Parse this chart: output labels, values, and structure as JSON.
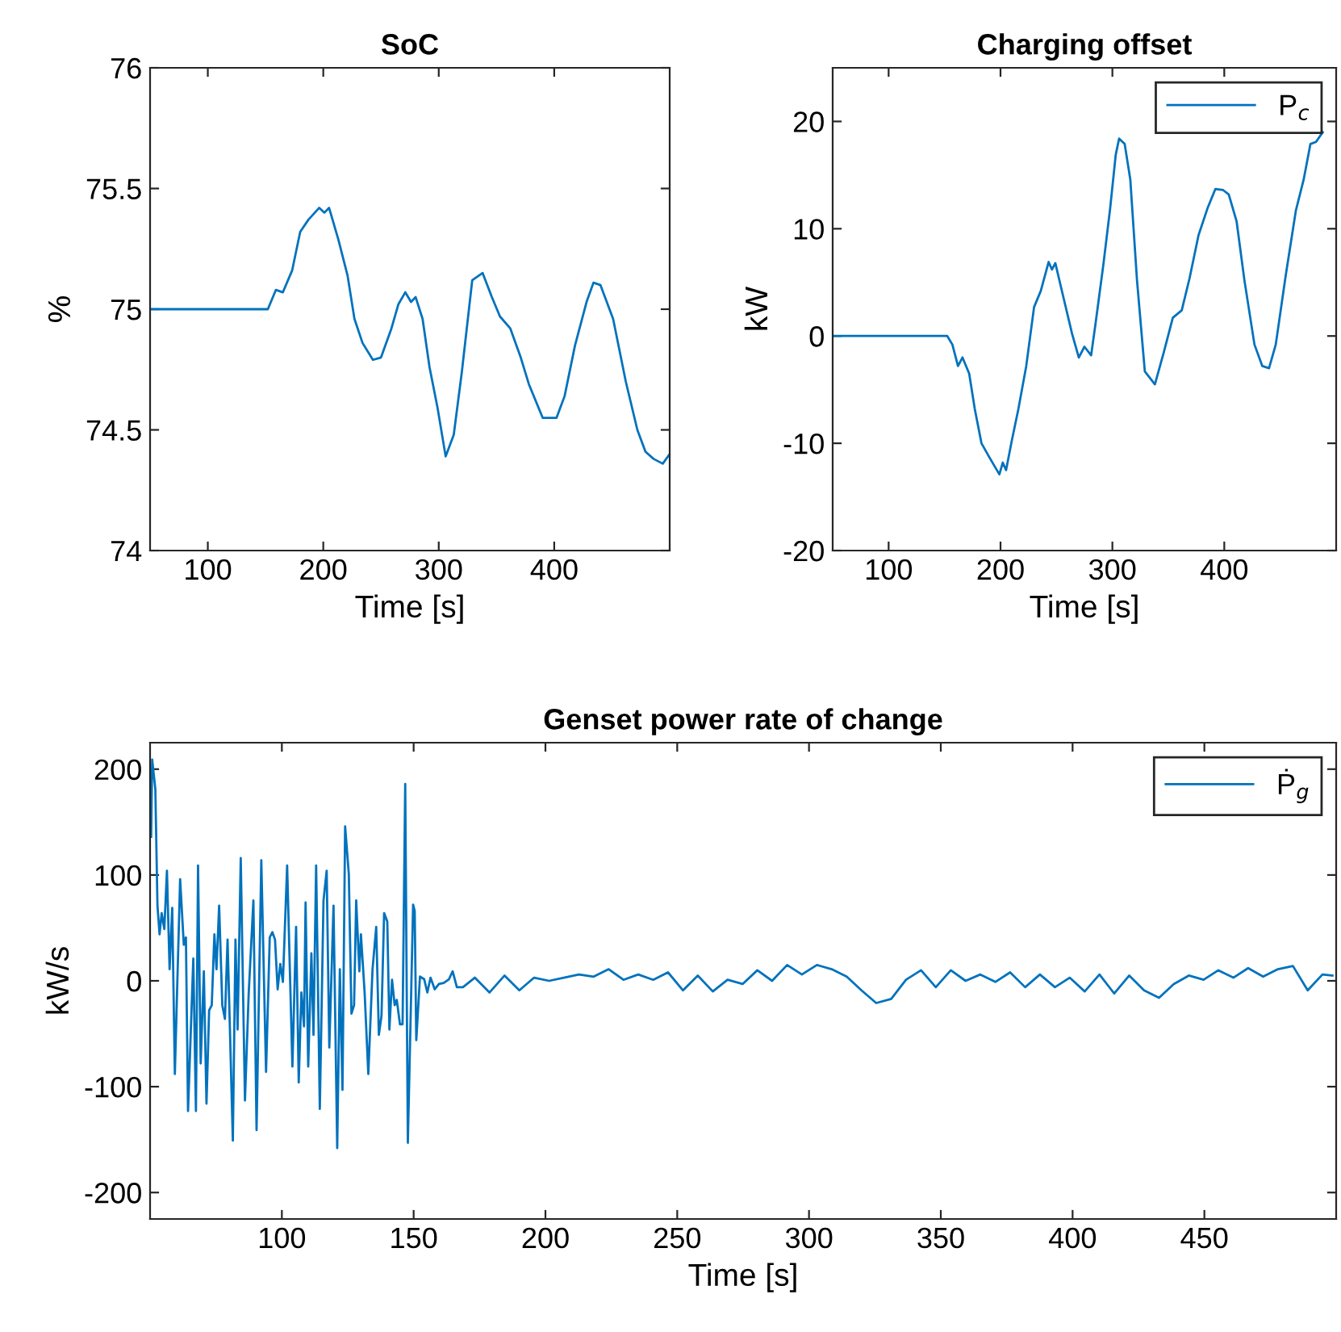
{
  "chart_data": [
    {
      "type": "line",
      "title": "SoC",
      "xlabel": "Time [s]",
      "ylabel": "%",
      "xlim": [
        50,
        500
      ],
      "ylim": [
        74,
        76
      ],
      "xticks": [
        100,
        200,
        300,
        400
      ],
      "yticks": [
        74,
        74.5,
        75,
        75.5,
        76
      ],
      "legend": false,
      "series": [
        {
          "color": "#0072bd",
          "x": [
            50,
            152,
            159,
            165,
            173,
            180,
            187,
            196.5,
            201,
            205,
            213,
            221,
            227,
            234,
            243,
            250,
            259,
            265,
            271,
            276,
            280,
            286,
            292,
            299,
            306,
            313,
            320,
            329,
            338,
            346,
            353,
            362,
            371,
            378,
            390,
            402,
            409,
            418,
            428,
            434,
            440,
            451,
            462,
            472,
            479,
            486,
            494,
            500
          ],
          "values": [
            75.0,
            75.0,
            75.08,
            75.07,
            75.16,
            75.32,
            75.37,
            75.42,
            75.4,
            75.42,
            75.29,
            75.14,
            74.96,
            74.86,
            74.79,
            74.8,
            74.92,
            75.02,
            75.07,
            75.03,
            75.05,
            74.96,
            74.76,
            74.59,
            74.39,
            74.48,
            74.74,
            75.12,
            75.15,
            75.05,
            74.97,
            74.92,
            74.8,
            74.69,
            74.55,
            74.55,
            74.64,
            74.85,
            75.03,
            75.11,
            75.1,
            74.96,
            74.7,
            74.5,
            74.41,
            74.38,
            74.36,
            74.4
          ]
        }
      ]
    },
    {
      "type": "line",
      "title": "Charging offset",
      "xlabel": "Time [s]",
      "ylabel": "kW",
      "xlim": [
        50,
        500
      ],
      "ylim": [
        -20,
        25
      ],
      "xticks": [
        100,
        200,
        300,
        400
      ],
      "yticks": [
        -20,
        -10,
        0,
        10,
        20
      ],
      "legend": "top right",
      "series": [
        {
          "name": "P$_{c}$",
          "color": "#0072bd",
          "x": [
            50,
            152.4,
            157,
            162,
            166,
            172,
            177,
            183,
            190,
            199,
            202,
            205,
            210,
            216,
            223,
            230,
            236,
            243,
            246,
            249,
            256,
            264,
            270,
            275,
            281,
            285,
            292,
            298,
            303,
            306,
            311,
            316,
            322,
            329,
            338,
            346,
            354,
            362,
            369,
            377,
            385,
            392,
            399,
            404,
            411,
            418,
            427,
            434,
            440,
            446,
            455,
            464,
            471,
            477,
            482,
            488
          ],
          "values": [
            0,
            0,
            -0.8,
            -2.8,
            -2.0,
            -3.5,
            -6.8,
            -10.0,
            -11.3,
            -12.9,
            -11.8,
            -12.5,
            -9.8,
            -6.8,
            -2.8,
            2.7,
            4.2,
            6.9,
            6.2,
            6.8,
            3.7,
            0.2,
            -2.0,
            -1.0,
            -1.8,
            1.2,
            6.7,
            11.9,
            16.9,
            18.4,
            17.9,
            14.6,
            5.2,
            -3.3,
            -4.5,
            -1.5,
            1.7,
            2.4,
            5.4,
            9.4,
            11.9,
            13.7,
            13.6,
            13.2,
            10.7,
            5.2,
            -0.8,
            -2.8,
            -3.0,
            -0.8,
            5.7,
            11.7,
            14.6,
            17.9,
            18.1,
            19.0
          ]
        }
      ]
    },
    {
      "type": "line",
      "title": "Genset power rate of change",
      "xlabel": "Time [s]",
      "ylabel": "kW/s",
      "xlim": [
        50,
        500
      ],
      "ylim": [
        -225,
        225
      ],
      "xticks": [
        100,
        150,
        200,
        250,
        300,
        350,
        400,
        450
      ],
      "yticks": [
        -200,
        -100,
        0,
        100,
        200
      ],
      "legend": "top right",
      "series": [
        {
          "name": "Ṗ$_{g}$",
          "color": "#0072bd",
          "x": [
            50.4,
            50.8,
            52,
            52.8,
            53.6,
            54.4,
            55.4,
            56.4,
            57.4,
            58.4,
            59.4,
            61.4,
            62.8,
            63.6,
            64.4,
            66.4,
            67.4,
            68.2,
            69.2,
            70.4,
            71.4,
            72.4,
            73.4,
            74.4,
            75.2,
            76.2,
            77.4,
            78.4,
            79.4,
            81.4,
            82.4,
            83.2,
            84.4,
            86,
            87.4,
            89.2,
            90.4,
            92.2,
            94,
            95.4,
            96.4,
            97.4,
            98.4,
            99.4,
            100.4,
            102,
            104,
            105.4,
            106.4,
            107.4,
            108.4,
            109,
            110,
            111.2,
            112,
            113,
            114.4,
            115.8,
            117,
            118,
            119.6,
            121,
            122,
            123,
            124,
            125.4,
            126.4,
            127.4,
            128.2,
            129.4,
            130,
            131.4,
            132.8,
            134.4,
            135.8,
            136.8,
            137.8,
            138.8,
            140,
            140.8,
            141.8,
            142.8,
            143.6,
            144.8,
            145.8,
            146.8,
            147.8,
            149.8,
            150.4,
            151,
            152.4,
            154,
            155.2,
            156.4,
            158,
            159.6,
            161.4,
            163.4,
            164.8,
            166.4,
            168.7,
            173.2,
            178.8,
            184.5,
            190.1,
            195.7,
            201.4,
            207,
            212.7,
            218.3,
            224,
            229.6,
            235.2,
            240.9,
            246.5,
            252.2,
            257.8,
            263.5,
            269.1,
            274.8,
            280.4,
            286,
            291.7,
            297.3,
            303,
            308.6,
            314.3,
            319.9,
            325.5,
            331.2,
            336.8,
            342.5,
            348.1,
            353.8,
            359.4,
            365,
            370.7,
            376.3,
            382,
            387.6,
            393.3,
            398.9,
            404.6,
            410.2,
            415.8,
            421.5,
            427.1,
            432.8,
            438.4,
            444.1,
            449.7,
            455.3,
            461,
            466.6,
            472.3,
            477.9,
            483.6,
            489.2,
            494.8,
            498.6
          ],
          "values": [
            136,
            209,
            181,
            71,
            44,
            64,
            49,
            104,
            11,
            69,
            -88,
            96,
            34,
            41,
            -123,
            21,
            -123,
            109,
            -78,
            9,
            -116,
            -28,
            -23,
            44,
            11,
            71,
            -23,
            -36,
            39,
            -151,
            39,
            -46,
            116,
            -113,
            -13,
            76,
            -141,
            114,
            -86,
            41,
            46,
            39,
            -8,
            16,
            -1,
            109,
            -81,
            51,
            -96,
            -11,
            -43,
            74,
            -81,
            26,
            -51,
            109,
            -121,
            76,
            104,
            -63,
            71,
            -158,
            11,
            -103,
            146,
            101,
            -31,
            -23,
            76,
            9,
            44,
            -11,
            -88,
            11,
            51,
            -51,
            -33,
            64,
            56,
            -46,
            1,
            -23,
            -18,
            -41,
            -41,
            186,
            -153,
            72,
            66,
            -56,
            4,
            1.5,
            -11,
            3,
            -8,
            -3,
            -2,
            1.5,
            9,
            -6,
            -6,
            3,
            -11,
            5,
            -9,
            3,
            0,
            3,
            6,
            4,
            11,
            1,
            6,
            1,
            8,
            -9,
            5,
            -10,
            1,
            -3,
            10,
            0,
            15,
            6,
            15,
            11,
            4,
            -9,
            -21,
            -17,
            1,
            10,
            -6,
            10,
            0,
            6,
            -1,
            8,
            -6,
            6,
            -6,
            3,
            -10,
            6,
            -12,
            5,
            -9,
            -16,
            -3,
            5,
            1,
            10,
            3,
            12,
            4,
            11,
            14,
            -9,
            6,
            5
          ]
        }
      ]
    }
  ]
}
